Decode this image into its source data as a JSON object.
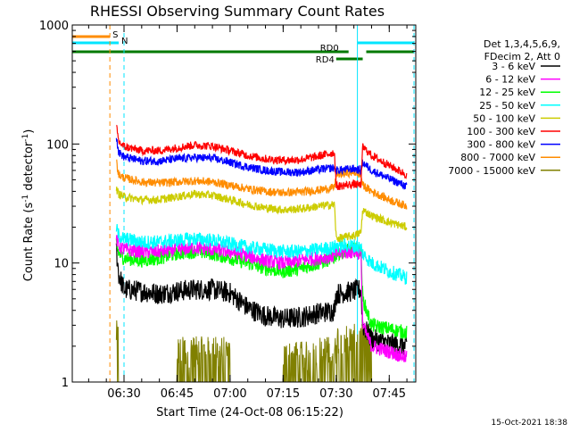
{
  "chart_data": {
    "type": "line",
    "title": "RHESSI Observing Summary Count Rates",
    "xlabel": "Start Time (24-Oct-08 06:15:22)",
    "ylabel_main": "Count Rate (s",
    "ylabel_sup1": "-1",
    "ylabel_mid": " detector",
    "ylabel_sup2": "-1",
    "ylabel_end": ")",
    "yscale": "log",
    "xlim": [
      "06:15:22",
      "07:52:30"
    ],
    "ylim": [
      1,
      1000
    ],
    "xticks": [
      "06:30",
      "06:45",
      "07:00",
      "07:15",
      "07:30",
      "07:45"
    ],
    "yticks": [
      {
        "value": 1,
        "label": "1"
      },
      {
        "value": 10,
        "label": "10"
      },
      {
        "value": 100,
        "label": "100"
      },
      {
        "value": 1000,
        "label": "1000"
      }
    ],
    "legend_position": "right",
    "legend_header": [
      "Det 1,3,4,5,6,9,",
      "FDecim 2, Att 0"
    ],
    "footer_date": "15-Oct-2021 18:38",
    "flags": [
      {
        "label": "S",
        "color": "#ff8c00",
        "start": "06:15:22",
        "end": "06:26:00"
      },
      {
        "label": "N",
        "color": "#00e5ff",
        "start": "06:15:22",
        "end": "06:28:30"
      },
      {
        "label": "RD0",
        "color": "#007a00",
        "start": "06:15:22",
        "end": "07:33:30"
      },
      {
        "label": "RD4",
        "color": "#007a00",
        "start": "07:30:00",
        "end": "07:37:30"
      }
    ],
    "vertical_lines": [
      {
        "time": "06:26:00",
        "color": "#ff8c00",
        "style": "dashed"
      },
      {
        "time": "06:30:00",
        "color": "#00e5ff",
        "style": "dashed"
      },
      {
        "time": "07:36:00",
        "color": "#00e5ff",
        "style": "solid"
      },
      {
        "time": "07:52:00",
        "color": "#00e5ff",
        "style": "dashed"
      }
    ],
    "series": [
      {
        "name": "3 - 6 keV",
        "color": "#000000",
        "times": [
          "06:27:50",
          "06:28:30",
          "06:30",
          "06:35",
          "06:40",
          "06:45",
          "06:50",
          "06:55",
          "07:00",
          "07:05",
          "07:10",
          "07:15",
          "07:20",
          "07:25",
          "07:29:30",
          "07:30",
          "07:35",
          "07:37:00",
          "07:37:30",
          "07:40",
          "07:45",
          "07:50"
        ],
        "values": [
          13,
          8,
          6,
          5.8,
          5.5,
          5.8,
          6.0,
          6.0,
          5.6,
          4.2,
          3.6,
          3.4,
          3.5,
          3.8,
          4.0,
          5.5,
          5.8,
          6.0,
          3.0,
          2.3,
          2.1,
          2.0
        ]
      },
      {
        "name": "6 - 12 keV",
        "color": "#ff00ff",
        "times": [
          "06:27:50",
          "06:28:30",
          "06:30",
          "06:35",
          "06:40",
          "06:45",
          "06:50",
          "06:55",
          "07:00",
          "07:05",
          "07:10",
          "07:15",
          "07:20",
          "07:25",
          "07:29:30",
          "07:30",
          "07:35",
          "07:37:00",
          "07:37:30",
          "07:40",
          "07:45",
          "07:50"
        ],
        "values": [
          16,
          14,
          13,
          12.5,
          12.5,
          13,
          13.5,
          13,
          12.5,
          11.5,
          10.5,
          10,
          10.5,
          11,
          11.5,
          12,
          12.5,
          12,
          3.0,
          2.0,
          1.8,
          1.6
        ]
      },
      {
        "name": "12 - 25 keV",
        "color": "#00ff00",
        "times": [
          "06:27:50",
          "06:28:30",
          "06:30",
          "06:35",
          "06:40",
          "06:45",
          "06:50",
          "06:55",
          "07:00",
          "07:05",
          "07:10",
          "07:15",
          "07:20",
          "07:25",
          "07:29:30",
          "07:30",
          "07:35",
          "07:37:00",
          "07:37:30",
          "07:40",
          "07:45",
          "07:50"
        ],
        "values": [
          15,
          12,
          11,
          10.5,
          11,
          12,
          12.5,
          12,
          11,
          10,
          9,
          8.5,
          9,
          10,
          11,
          12,
          13,
          13,
          5.0,
          3.0,
          2.8,
          2.6
        ]
      },
      {
        "name": "25 - 50 keV",
        "color": "#00ffff",
        "times": [
          "06:27:50",
          "06:28:30",
          "06:30",
          "06:35",
          "06:40",
          "06:45",
          "06:50",
          "06:55",
          "07:00",
          "07:05",
          "07:10",
          "07:15",
          "07:20",
          "07:25",
          "07:29:30",
          "07:30",
          "07:35",
          "07:37:00",
          "07:37:30",
          "07:40",
          "07:45",
          "07:50"
        ],
        "values": [
          20,
          17,
          16,
          15,
          15,
          15.5,
          16,
          15.5,
          14.5,
          13.5,
          13,
          12.5,
          12.5,
          13,
          13.5,
          14,
          14,
          13.5,
          12,
          10,
          8.5,
          7.5
        ]
      },
      {
        "name": "50 - 100 keV",
        "color": "#cccc00",
        "times": [
          "06:27:50",
          "06:28:30",
          "06:30",
          "06:35",
          "06:40",
          "06:45",
          "06:50",
          "06:55",
          "07:00",
          "07:05",
          "07:10",
          "07:15",
          "07:20",
          "07:25",
          "07:29:30",
          "07:30",
          "07:35",
          "07:37:00",
          "07:37:30",
          "07:40",
          "07:45",
          "07:50"
        ],
        "values": [
          42,
          38,
          36,
          34,
          34,
          36,
          38,
          37,
          34,
          31,
          29,
          28,
          28.5,
          30,
          31,
          16,
          17,
          18,
          28,
          25,
          22,
          20
        ]
      },
      {
        "name": "100 - 300 keV",
        "color": "#ff0000",
        "times": [
          "06:27:50",
          "06:28:30",
          "06:30",
          "06:35",
          "06:40",
          "06:45",
          "06:50",
          "06:55",
          "07:00",
          "07:05",
          "07:10",
          "07:15",
          "07:20",
          "07:25",
          "07:29:30",
          "07:30",
          "07:35",
          "07:37:00",
          "07:37:30",
          "07:40",
          "07:45",
          "07:50"
        ],
        "values": [
          140,
          105,
          95,
          88,
          88,
          93,
          98,
          96,
          88,
          80,
          75,
          73,
          74,
          79,
          85,
          44,
          46,
          45,
          95,
          80,
          66,
          55
        ]
      },
      {
        "name": "300 - 800 keV",
        "color": "#0000ff",
        "times": [
          "06:27:50",
          "06:28:30",
          "06:30",
          "06:35",
          "06:40",
          "06:45",
          "06:50",
          "06:55",
          "07:00",
          "07:05",
          "07:10",
          "07:15",
          "07:20",
          "07:25",
          "07:29:30",
          "07:30",
          "07:35",
          "07:37:00",
          "07:37:30",
          "07:40",
          "07:45",
          "07:50"
        ],
        "values": [
          118,
          85,
          78,
          72,
          72,
          75,
          77,
          76,
          70,
          64,
          60,
          58,
          58,
          61,
          63,
          60,
          62,
          60,
          70,
          60,
          51,
          44
        ]
      },
      {
        "name": "800 - 7000 keV",
        "color": "#ff8c00",
        "times": [
          "06:27:50",
          "06:28:30",
          "06:30",
          "06:35",
          "06:40",
          "06:45",
          "06:50",
          "06:55",
          "07:00",
          "07:05",
          "07:10",
          "07:15",
          "07:20",
          "07:25",
          "07:29:30",
          "07:30",
          "07:35",
          "07:37:00",
          "07:37:30",
          "07:40",
          "07:45",
          "07:50"
        ],
        "values": [
          72,
          55,
          52,
          48,
          47,
          48,
          49,
          48,
          45,
          42,
          40,
          39,
          39.5,
          41,
          43,
          55,
          58,
          55,
          45,
          40,
          34,
          30
        ]
      },
      {
        "name": "7000 - 15000 keV",
        "color": "#808000",
        "times": [
          "06:27:50",
          "06:28:30",
          "06:35",
          "06:40",
          "06:44",
          "06:45",
          "06:48",
          "06:50",
          "06:55",
          "07:00",
          "07:05",
          "07:13",
          "07:15",
          "07:20",
          "07:25",
          "07:30",
          "07:35",
          "07:37",
          "07:40",
          "07:45",
          "07:50"
        ],
        "values": [
          3,
          1,
          1,
          1,
          1,
          2.2,
          2.2,
          2.2,
          2.2,
          1,
          1,
          1,
          2,
          2,
          2.2,
          2.8,
          2.8,
          2.8,
          1,
          1,
          1
        ]
      }
    ]
  }
}
